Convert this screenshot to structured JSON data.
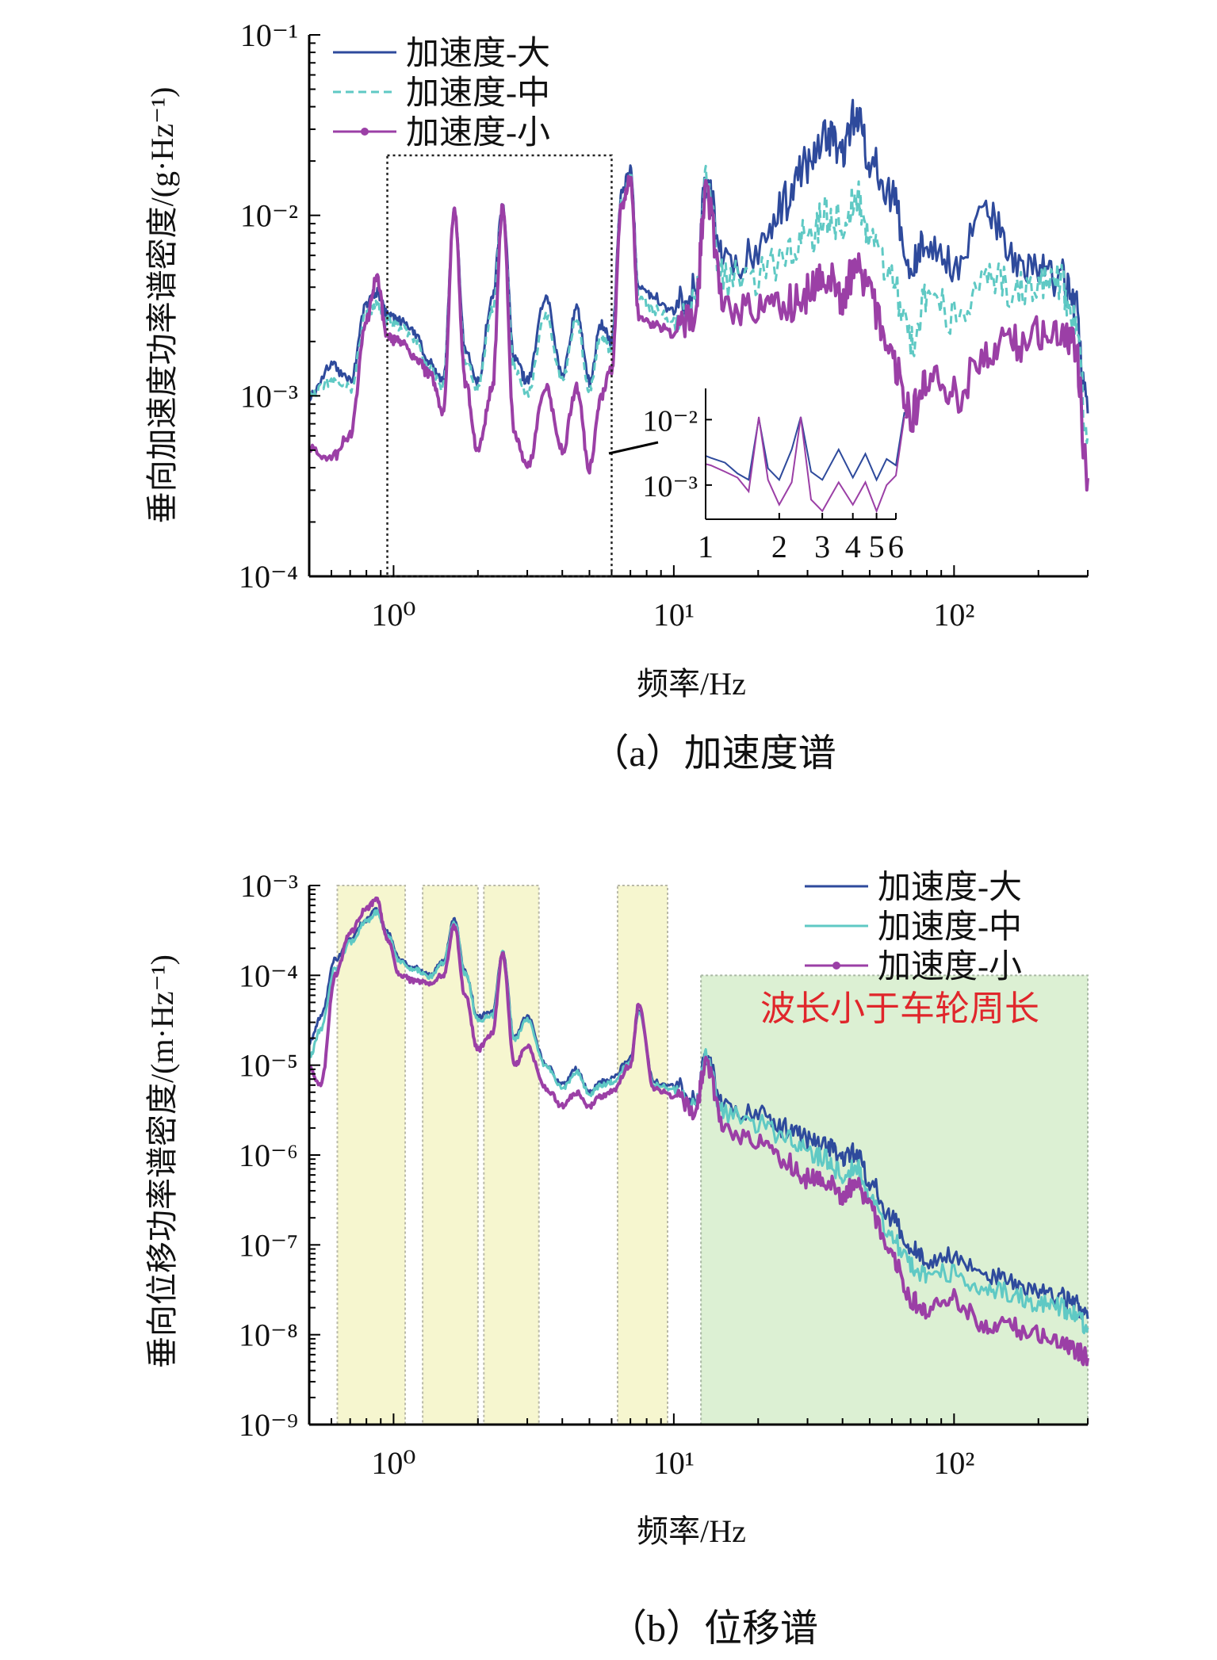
{
  "figure": {
    "caption_a": "（a）加速度谱",
    "caption_b": "（b）位移谱"
  },
  "colors": {
    "large": "#2e4a9c",
    "medium": "#5fc9c4",
    "small": "#9b3fa6",
    "yellow_band": "#f6f6cf",
    "green_band": "#dcf0d3",
    "annotation_red": "#e0262b"
  },
  "chart_data": [
    {
      "id": "a",
      "type": "line",
      "title": "",
      "xlabel": "频率/Hz",
      "ylabel": "垂向加速度功率谱密度/(g·Hz⁻¹)",
      "xscale": "log",
      "yscale": "log",
      "xlim": [
        0.5,
        300
      ],
      "ylim": [
        0.0001,
        0.1
      ],
      "xticklabels": [
        "10⁰",
        "10¹",
        "10²"
      ],
      "yticklabels": [
        "10⁻⁴",
        "10⁻³",
        "10⁻²",
        "10⁻¹"
      ],
      "legend_position": "top-left",
      "x": [
        0.5,
        0.6,
        0.7,
        0.8,
        0.87,
        0.95,
        1.05,
        1.2,
        1.35,
        1.5,
        1.65,
        1.8,
        2.0,
        2.25,
        2.45,
        2.7,
        3.0,
        3.5,
        4.0,
        4.5,
        5.0,
        5.5,
        6.0,
        6.5,
        7.0,
        7.5,
        8.5,
        10,
        12,
        13,
        15,
        20,
        25,
        30,
        35,
        40,
        45,
        50,
        60,
        70,
        80,
        100,
        130,
        160,
        200,
        240,
        270,
        300
      ],
      "series": [
        {
          "name": "加速度-大",
          "style": "solid",
          "values": [
            0.001,
            0.0015,
            0.0012,
            0.0032,
            0.0038,
            0.0028,
            0.0026,
            0.0022,
            0.0015,
            0.0012,
            0.0105,
            0.0018,
            0.0012,
            0.0035,
            0.011,
            0.0016,
            0.0012,
            0.0035,
            0.0013,
            0.003,
            0.0012,
            0.0025,
            0.002,
            0.013,
            0.018,
            0.004,
            0.0035,
            0.003,
            0.0038,
            0.016,
            0.0055,
            0.006,
            0.012,
            0.019,
            0.028,
            0.022,
            0.038,
            0.02,
            0.013,
            0.005,
            0.007,
            0.0055,
            0.011,
            0.006,
            0.005,
            0.0045,
            0.0032,
            0.0008
          ]
        },
        {
          "name": "加速度-中",
          "style": "dashed",
          "values": [
            0.001,
            0.0012,
            0.0011,
            0.0028,
            0.0032,
            0.0026,
            0.0024,
            0.002,
            0.0014,
            0.0011,
            0.0103,
            0.0016,
            0.0011,
            0.003,
            0.0105,
            0.0014,
            0.001,
            0.0028,
            0.0012,
            0.0026,
            0.0011,
            0.0022,
            0.0018,
            0.012,
            0.017,
            0.0035,
            0.003,
            0.0026,
            0.0034,
            0.015,
            0.0045,
            0.0045,
            0.006,
            0.0075,
            0.01,
            0.009,
            0.013,
            0.008,
            0.0045,
            0.002,
            0.0035,
            0.0028,
            0.0045,
            0.004,
            0.0042,
            0.0042,
            0.0028,
            0.0006
          ]
        },
        {
          "name": "加速度-小",
          "style": "solid-marker",
          "values": [
            0.0005,
            0.00045,
            0.0006,
            0.0026,
            0.0045,
            0.0021,
            0.002,
            0.0016,
            0.0013,
            0.0008,
            0.011,
            0.0012,
            0.0005,
            0.0011,
            0.011,
            0.0006,
            0.0004,
            0.0011,
            0.0005,
            0.0011,
            0.0004,
            0.001,
            0.0014,
            0.011,
            0.016,
            0.0028,
            0.0025,
            0.0022,
            0.003,
            0.014,
            0.0032,
            0.0028,
            0.0032,
            0.0037,
            0.0045,
            0.0035,
            0.0055,
            0.0035,
            0.0015,
            0.0008,
            0.0012,
            0.001,
            0.0018,
            0.0019,
            0.0022,
            0.0024,
            0.002,
            0.00035
          ]
        }
      ],
      "inset": {
        "xticklabels": [
          "1",
          "2",
          "3",
          "4",
          "5",
          "6"
        ],
        "yticklabels": [
          "10⁻²",
          "10⁻³"
        ],
        "xlim": [
          1,
          6
        ],
        "ylim": [
          0.0003,
          0.03
        ],
        "zoom_region_x": [
          0.95,
          6
        ]
      }
    },
    {
      "id": "b",
      "type": "line",
      "title": "",
      "xlabel": "频率/Hz",
      "ylabel": "垂向位移功率谱密度/(m·Hz⁻¹)",
      "xscale": "log",
      "yscale": "log",
      "xlim": [
        0.5,
        300
      ],
      "ylim": [
        1e-09,
        0.001
      ],
      "xticklabels": [
        "10⁰",
        "10¹",
        "10²"
      ],
      "yticklabels": [
        "10⁻⁹",
        "10⁻⁸",
        "10⁻⁷",
        "10⁻⁶",
        "10⁻⁵",
        "10⁻⁴",
        "10⁻³"
      ],
      "legend_position": "top-right",
      "annotation": "波长小于车轮周长",
      "highlight_bands_hz": [
        [
          0.63,
          1.1
        ],
        [
          1.27,
          2.0
        ],
        [
          2.1,
          3.3
        ],
        [
          6.3,
          9.5
        ]
      ],
      "green_band_hz": [
        12.5,
        300
      ],
      "x": [
        0.5,
        0.55,
        0.62,
        0.7,
        0.8,
        0.87,
        0.95,
        1.05,
        1.2,
        1.35,
        1.5,
        1.65,
        1.8,
        2.0,
        2.25,
        2.45,
        2.7,
        3.0,
        3.5,
        4.0,
        4.5,
        5.0,
        5.5,
        6.0,
        7.0,
        7.5,
        8.5,
        10,
        12,
        13,
        15,
        20,
        25,
        30,
        35,
        40,
        45,
        50,
        60,
        70,
        80,
        100,
        130,
        160,
        200,
        240,
        270,
        300
      ],
      "series": [
        {
          "name": "加速度-大",
          "values": [
            1.8e-05,
            3.5e-05,
            0.00015,
            0.00025,
            0.00042,
            0.00053,
            0.0003,
            0.00015,
            0.00012,
            0.0001,
            0.00014,
            0.00042,
            0.00011,
            3.5e-05,
            3.8e-05,
            0.00018,
            2e-05,
            3.5e-05,
            1e-05,
            6e-06,
            9e-06,
            5e-06,
            6.5e-06,
            7e-06,
            1.2e-05,
            4e-05,
            6.5e-06,
            6e-06,
            4e-06,
            1.3e-05,
            3.5e-06,
            2.8e-06,
            2e-06,
            1.5e-06,
            1.3e-06,
            9e-07,
            1.1e-06,
            5e-07,
            2e-07,
            9e-08,
            6.5e-08,
            8e-08,
            4.5e-08,
            4e-08,
            3e-08,
            2.6e-08,
            2.2e-08,
            1.5e-08
          ]
        },
        {
          "name": "加速度-中",
          "values": [
            1.2e-05,
            2.5e-05,
            0.00012,
            0.00023,
            0.0004,
            0.0005,
            0.00028,
            0.00014,
            0.000115,
            9.5e-05,
            0.000135,
            0.0004,
            0.000105,
            3.2e-05,
            3.5e-05,
            0.000175,
            1.9e-05,
            3.2e-05,
            9.5e-06,
            5.5e-06,
            8.5e-06,
            4.8e-06,
            6e-06,
            6.5e-06,
            1.1e-05,
            3.9e-05,
            6e-06,
            5.5e-06,
            3.6e-06,
            1.2e-05,
            3e-06,
            2.2e-06,
            1.6e-06,
            1.1e-06,
            9e-07,
            6e-07,
            7.5e-07,
            3.5e-07,
            1.2e-07,
            6e-08,
            4.5e-08,
            5e-08,
            3e-08,
            3e-08,
            2.2e-08,
            2e-08,
            1.8e-08,
            1.2e-08
          ]
        },
        {
          "name": "加速度-小",
          "values": [
            9e-06,
            6e-06,
            0.0001,
            0.0003,
            0.00055,
            0.0007,
            0.00025,
            0.0001,
            8.5e-05,
            8e-05,
            0.0001,
            0.00035,
            6e-05,
            1.5e-05,
            2.2e-05,
            0.00017,
            1e-05,
            1.6e-05,
            5.5e-06,
            3.5e-06,
            5e-06,
            3.5e-06,
            4.5e-06,
            5e-06,
            1e-05,
            4.8e-05,
            5.5e-06,
            4.5e-06,
            3.2e-06,
            1.1e-05,
            2e-06,
            1.3e-06,
            8.5e-07,
            5.5e-07,
            5e-07,
            3.5e-07,
            5e-07,
            2.5e-07,
            7e-08,
            2.5e-08,
            1.8e-08,
            2.5e-08,
            1.3e-08,
            1.2e-08,
            1e-08,
            9e-09,
            7e-09,
            5.5e-09
          ]
        }
      ]
    }
  ]
}
